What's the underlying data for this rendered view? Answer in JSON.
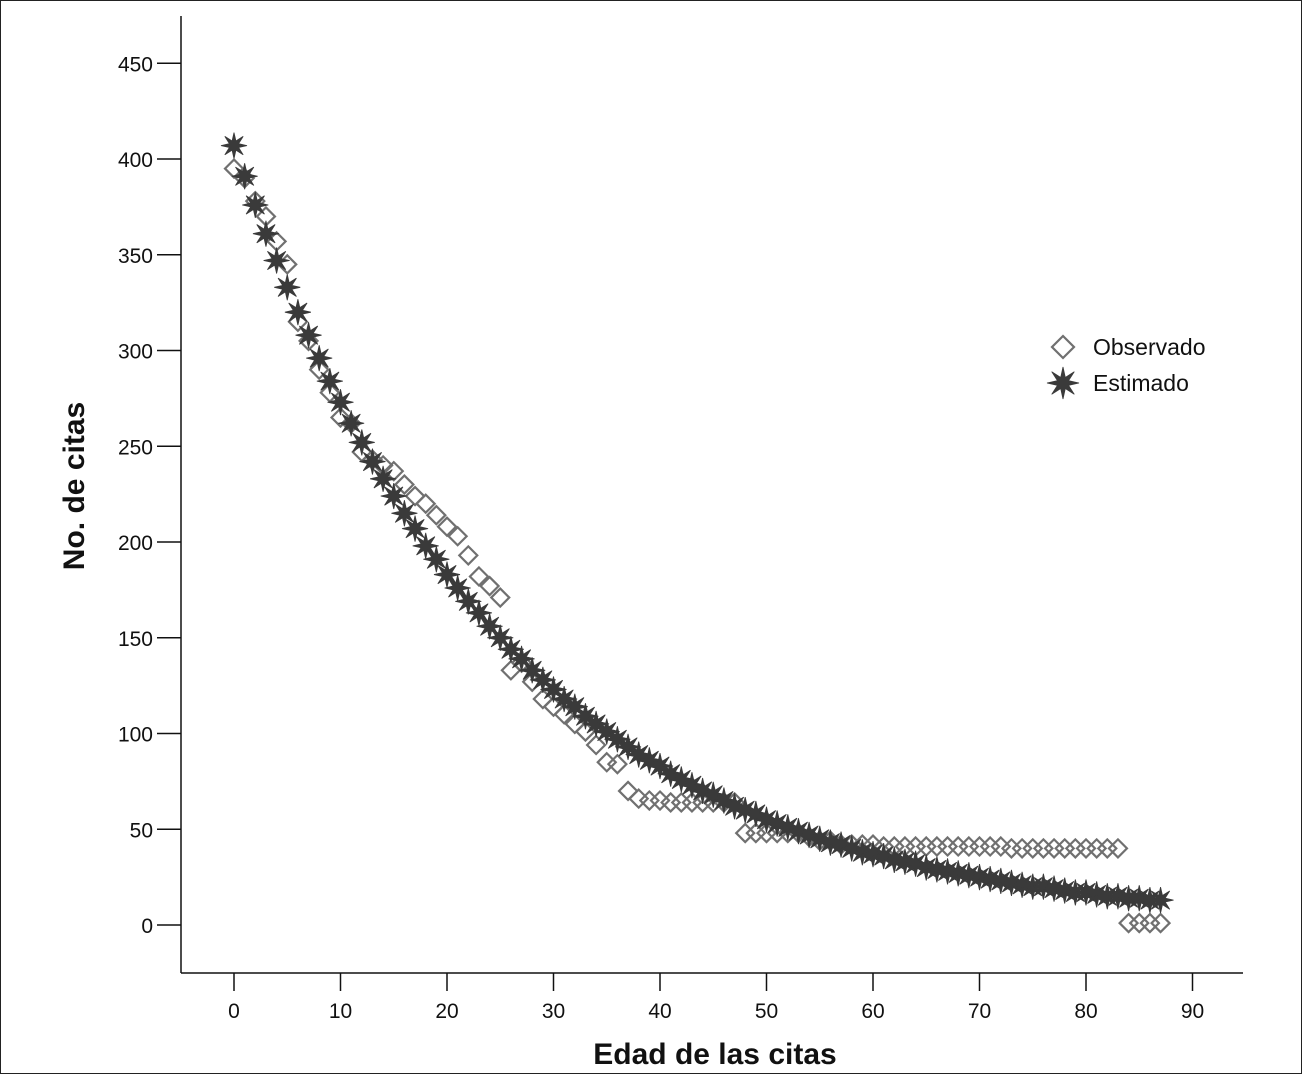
{
  "chart_data": {
    "type": "scatter",
    "title": "",
    "xlabel": "Edad de las citas",
    "ylabel": "No. de citas",
    "xlim": [
      -5,
      95
    ],
    "ylim": [
      -25,
      475
    ],
    "xticks": [
      0,
      10,
      20,
      30,
      40,
      50,
      60,
      70,
      80,
      90
    ],
    "yticks": [
      0,
      50,
      100,
      150,
      200,
      250,
      300,
      350,
      400,
      450
    ],
    "grid": false,
    "legend_position": "right",
    "series": [
      {
        "name": "Observado",
        "marker": "diamond-open",
        "color": "#707070",
        "x": [
          0,
          1,
          2,
          3,
          4,
          5,
          6,
          7,
          8,
          9,
          10,
          11,
          12,
          13,
          14,
          15,
          16,
          17,
          18,
          19,
          20,
          21,
          22,
          23,
          24,
          25,
          26,
          27,
          28,
          29,
          30,
          31,
          32,
          33,
          34,
          35,
          36,
          37,
          38,
          39,
          40,
          41,
          42,
          43,
          44,
          45,
          46,
          47,
          48,
          49,
          50,
          51,
          52,
          53,
          54,
          55,
          56,
          57,
          58,
          59,
          60,
          61,
          62,
          63,
          64,
          65,
          66,
          67,
          68,
          69,
          70,
          71,
          72,
          73,
          74,
          75,
          76,
          77,
          78,
          79,
          80,
          81,
          82,
          83,
          84,
          85,
          86,
          87
        ],
        "y": [
          395,
          390,
          378,
          370,
          357,
          345,
          315,
          305,
          290,
          278,
          265,
          262,
          247,
          243,
          240,
          237,
          230,
          224,
          220,
          214,
          208,
          203,
          193,
          182,
          177,
          171,
          133,
          137,
          127,
          118,
          114,
          110,
          105,
          101,
          94,
          85,
          84,
          70,
          66,
          65,
          65,
          64,
          64,
          64,
          64,
          64,
          64,
          64,
          48,
          48,
          48,
          48,
          48,
          48,
          46,
          44,
          44,
          42,
          42,
          42,
          42,
          41,
          41,
          41,
          41,
          41,
          41,
          41,
          41,
          41,
          41,
          41,
          41,
          40,
          40,
          40,
          40,
          40,
          40,
          40,
          40,
          40,
          40,
          40,
          1,
          1,
          1,
          1
        ]
      },
      {
        "name": "Estimado",
        "marker": "star",
        "color": "#3a3a3a",
        "x": [
          0,
          1,
          2,
          3,
          4,
          5,
          6,
          7,
          8,
          9,
          10,
          11,
          12,
          13,
          14,
          15,
          16,
          17,
          18,
          19,
          20,
          21,
          22,
          23,
          24,
          25,
          26,
          27,
          28,
          29,
          30,
          31,
          32,
          33,
          34,
          35,
          36,
          37,
          38,
          39,
          40,
          41,
          42,
          43,
          44,
          45,
          46,
          47,
          48,
          49,
          50,
          51,
          52,
          53,
          54,
          55,
          56,
          57,
          58,
          59,
          60,
          61,
          62,
          63,
          64,
          65,
          66,
          67,
          68,
          69,
          70,
          71,
          72,
          73,
          74,
          75,
          76,
          77,
          78,
          79,
          80,
          81,
          82,
          83,
          84,
          85,
          86,
          87
        ],
        "y": [
          407,
          391,
          376,
          361,
          347,
          333,
          320,
          308,
          296,
          284,
          273,
          262,
          252,
          242,
          233,
          224,
          215,
          207,
          198,
          191,
          183,
          176,
          169,
          163,
          156,
          150,
          144,
          139,
          133,
          128,
          123,
          118,
          114,
          109,
          105,
          101,
          97,
          93,
          89,
          86,
          83,
          79,
          76,
          73,
          70,
          68,
          65,
          62,
          60,
          58,
          55,
          53,
          51,
          49,
          47,
          45,
          43,
          42,
          40,
          38,
          37,
          36,
          34,
          33,
          32,
          30,
          29,
          28,
          27,
          26,
          25,
          24,
          23,
          22,
          21,
          20,
          20,
          19,
          18,
          17,
          17,
          16,
          15,
          15,
          14,
          14,
          13,
          13
        ]
      }
    ]
  }
}
